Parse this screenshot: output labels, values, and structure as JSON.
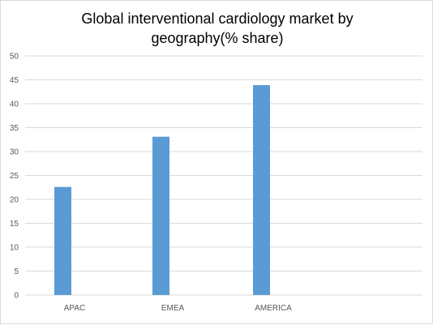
{
  "chart_data": {
    "type": "bar",
    "title_lines": [
      "Global interventional cardiology market  by",
      "geography(% share)"
    ],
    "categories": [
      "APAC",
      "EMEA",
      "AMERICA"
    ],
    "values": [
      22.6,
      33.1,
      43.9
    ],
    "ylim": [
      0,
      50
    ],
    "yticks": [
      "0",
      "5",
      "10",
      "15",
      "20",
      "25",
      "30",
      "35",
      "40",
      "45",
      "50"
    ],
    "grid": true,
    "bar_color": "#5b9bd5",
    "grid_color": "#d9d9d9"
  }
}
